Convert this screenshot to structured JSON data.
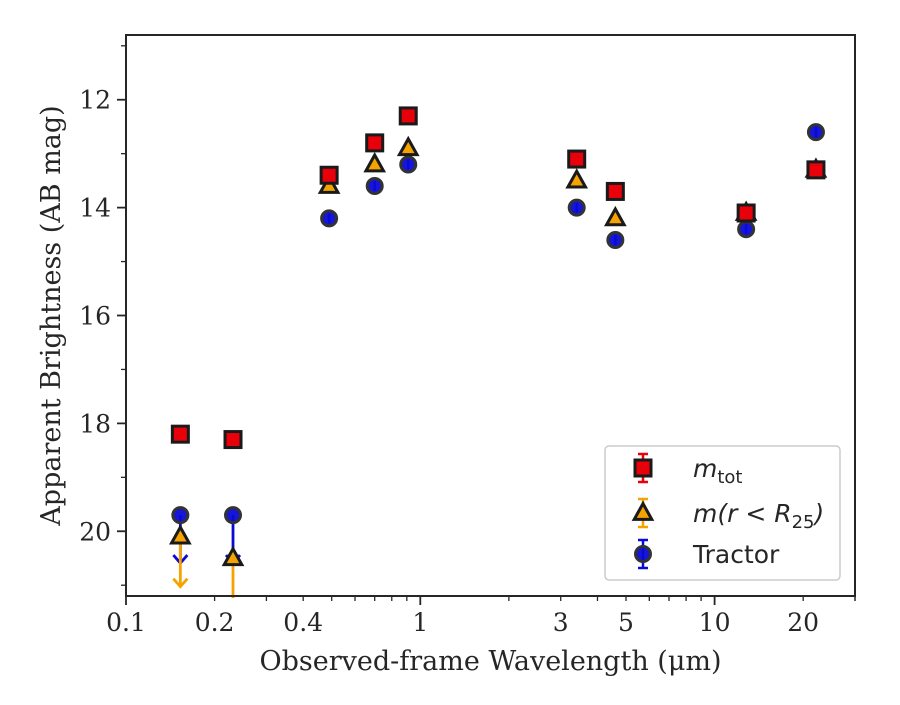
{
  "chart_data": {
    "type": "scatter",
    "xlabel": "Observed-frame Wavelength (μm)",
    "ylabel": "Apparent Brightness (AB mag)",
    "x_scale": "log",
    "xlim": [
      0.1,
      30
    ],
    "ylim": [
      21.2,
      10.8
    ],
    "y_inverted": true,
    "grid": false,
    "legend_position": "lower-right",
    "x_ticks": [
      {
        "value": 0.1,
        "label": "0.1"
      },
      {
        "value": 0.2,
        "label": "0.2"
      },
      {
        "value": 0.4,
        "label": "0.4"
      },
      {
        "value": 1,
        "label": "1"
      },
      {
        "value": 3,
        "label": "3"
      },
      {
        "value": 5,
        "label": "5"
      },
      {
        "value": 10,
        "label": "10"
      },
      {
        "value": 20,
        "label": "20"
      }
    ],
    "y_ticks": [
      {
        "value": 12,
        "label": "12"
      },
      {
        "value": 14,
        "label": "14"
      },
      {
        "value": 16,
        "label": "16"
      },
      {
        "value": 18,
        "label": "18"
      },
      {
        "value": 20,
        "label": "20"
      }
    ],
    "series": [
      {
        "name": "m_tot",
        "legend_label": "m",
        "legend_sub": "tot",
        "marker": "square",
        "color": "#e8000b",
        "edge_color": "#1a1a1a",
        "points": [
          {
            "x": 0.153,
            "y": 18.2
          },
          {
            "x": 0.231,
            "y": 18.3
          },
          {
            "x": 0.49,
            "y": 13.4
          },
          {
            "x": 0.7,
            "y": 12.8
          },
          {
            "x": 0.91,
            "y": 12.3
          },
          {
            "x": 3.4,
            "y": 13.1
          },
          {
            "x": 4.6,
            "y": 13.7
          },
          {
            "x": 12.8,
            "y": 14.1
          },
          {
            "x": 22.1,
            "y": 13.3
          }
        ]
      },
      {
        "name": "m(r < R25)",
        "legend_label": "m(r < R",
        "legend_sub": "25",
        "legend_tail": ")",
        "marker": "triangle",
        "color": "#f5a300",
        "edge_color": "#1a1a1a",
        "points": [
          {
            "x": 0.153,
            "y": 20.1,
            "upper_limit": true
          },
          {
            "x": 0.231,
            "y": 20.5,
            "upper_limit": true
          },
          {
            "x": 0.49,
            "y": 13.6
          },
          {
            "x": 0.7,
            "y": 13.2
          },
          {
            "x": 0.91,
            "y": 12.9
          },
          {
            "x": 3.4,
            "y": 13.5
          },
          {
            "x": 4.6,
            "y": 14.2
          },
          {
            "x": 12.8,
            "y": 14.1
          },
          {
            "x": 22.1,
            "y": 13.3
          }
        ]
      },
      {
        "name": "Tractor",
        "legend_label": "Tractor",
        "marker": "circle",
        "color": "#0a0ad6",
        "edge_color": "#333333",
        "points": [
          {
            "x": 0.153,
            "y": 19.7,
            "upper_limit": true
          },
          {
            "x": 0.231,
            "y": 19.7,
            "upper_limit": true
          },
          {
            "x": 0.49,
            "y": 14.2
          },
          {
            "x": 0.7,
            "y": 13.6
          },
          {
            "x": 0.91,
            "y": 13.2
          },
          {
            "x": 3.4,
            "y": 14.0
          },
          {
            "x": 4.6,
            "y": 14.6
          },
          {
            "x": 12.8,
            "y": 14.4
          },
          {
            "x": 22.1,
            "y": 12.6
          }
        ]
      }
    ]
  }
}
